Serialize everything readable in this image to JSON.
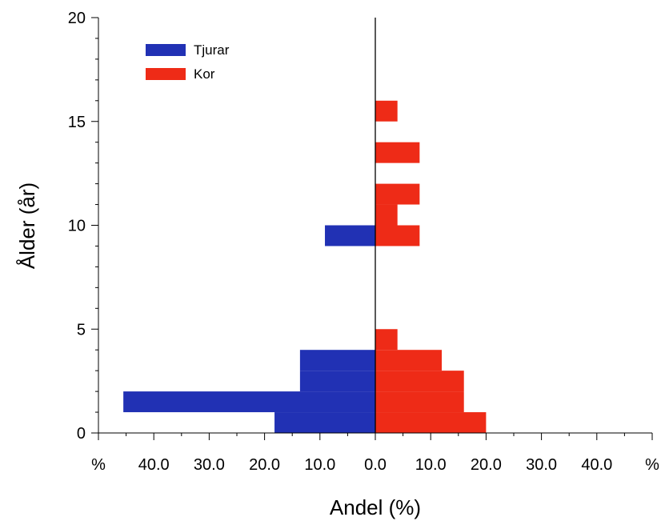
{
  "chart_data": {
    "type": "bar",
    "orientation": "horizontal-pyramid",
    "title": "",
    "xlabel": "Andel (%)",
    "ylabel": "Ålder (år)",
    "ylim": [
      0,
      20
    ],
    "xlim": [
      -50,
      50
    ],
    "y_ticks": [
      0,
      5,
      10,
      15,
      20
    ],
    "y_tick_labels": [
      "0",
      "5",
      "10",
      "15",
      "20"
    ],
    "x_ticks": [
      -50,
      -40,
      -30,
      -20,
      -10,
      0,
      10,
      20,
      30,
      40,
      50
    ],
    "x_tick_labels": [
      "%",
      "40.0",
      "30.0",
      "20.0",
      "10.0",
      "0.0",
      "10.0",
      "20.0",
      "30.0",
      "40.0",
      "%"
    ],
    "grid": false,
    "legend_position": "top-left",
    "series": [
      {
        "name": "Tjurar",
        "color": "#2131b4",
        "direction": "left",
        "bars": [
          {
            "age_from": 0,
            "age_to": 1,
            "value": 18.2
          },
          {
            "age_from": 1,
            "age_to": 2,
            "value": 45.5
          },
          {
            "age_from": 2,
            "age_to": 3,
            "value": 13.6
          },
          {
            "age_from": 3,
            "age_to": 4,
            "value": 13.6
          },
          {
            "age_from": 9,
            "age_to": 10,
            "value": 9.1
          }
        ]
      },
      {
        "name": "Kor",
        "color": "#ee2b17",
        "direction": "right",
        "bars": [
          {
            "age_from": 0,
            "age_to": 1,
            "value": 20.0
          },
          {
            "age_from": 1,
            "age_to": 2,
            "value": 16.0
          },
          {
            "age_from": 2,
            "age_to": 3,
            "value": 16.0
          },
          {
            "age_from": 3,
            "age_to": 4,
            "value": 12.0
          },
          {
            "age_from": 4,
            "age_to": 5,
            "value": 4.0
          },
          {
            "age_from": 9,
            "age_to": 10,
            "value": 8.0
          },
          {
            "age_from": 10,
            "age_to": 11,
            "value": 4.0
          },
          {
            "age_from": 11,
            "age_to": 12,
            "value": 8.0
          },
          {
            "age_from": 13,
            "age_to": 14,
            "value": 8.0
          },
          {
            "age_from": 15,
            "age_to": 16,
            "value": 4.0
          }
        ]
      }
    ]
  }
}
